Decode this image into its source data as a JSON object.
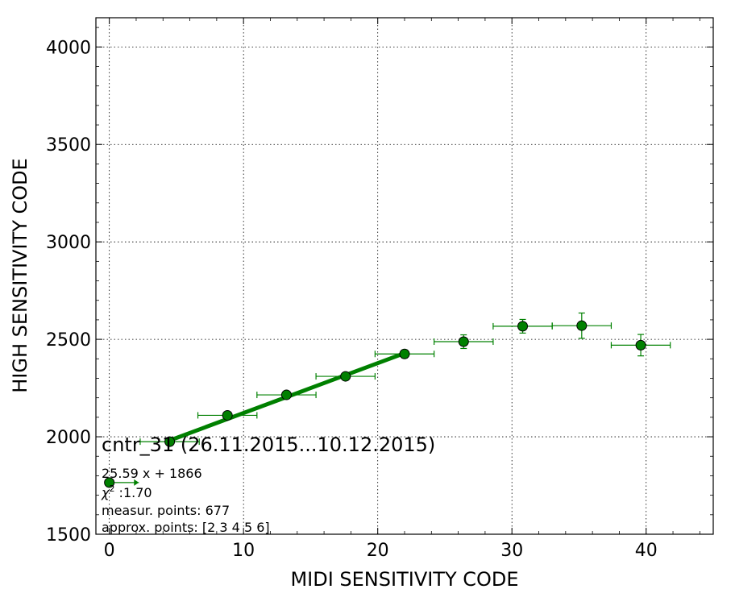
{
  "chart_data": {
    "type": "scatter",
    "xlabel": "MIDI SENSITIVITY CODE",
    "ylabel": "HIGH SENSITIVITY CODE",
    "xlim": [
      -1,
      45
    ],
    "ylim": [
      1500,
      4150
    ],
    "x_ticks": [
      0,
      10,
      20,
      30,
      40
    ],
    "y_ticks": [
      1500,
      2000,
      2500,
      3000,
      3500,
      4000
    ],
    "grid": true,
    "colors": {
      "series": "#008000",
      "marker_edge": "#000000"
    },
    "series": [
      {
        "points": [
          {
            "x": 0.0,
            "y": 1765,
            "xerr": 2.2,
            "yerr": 0,
            "xerr_one_sided": true
          },
          {
            "x": 4.5,
            "y": 1975,
            "xerr": 2.2,
            "yerr": 0
          },
          {
            "x": 8.8,
            "y": 2110,
            "xerr": 2.2,
            "yerr": 0
          },
          {
            "x": 13.2,
            "y": 2215,
            "xerr": 2.2,
            "yerr": 10
          },
          {
            "x": 17.6,
            "y": 2310,
            "xerr": 2.2,
            "yerr": 10
          },
          {
            "x": 22.0,
            "y": 2425,
            "xerr": 2.2,
            "yerr": 20
          },
          {
            "x": 26.4,
            "y": 2488,
            "xerr": 2.2,
            "yerr": 35
          },
          {
            "x": 30.8,
            "y": 2567,
            "xerr": 2.2,
            "yerr": 35
          },
          {
            "x": 35.2,
            "y": 2570,
            "xerr": 2.2,
            "yerr": 65
          },
          {
            "x": 39.6,
            "y": 2470,
            "xerr": 2.2,
            "yerr": 55
          }
        ]
      }
    ],
    "fit_line": {
      "slope": 25.59,
      "intercept": 1866,
      "x_start": 4.5,
      "x_end": 22.0
    },
    "annotations": {
      "title": "cntr_31 (26.11.2015...10.12.2015)",
      "equation": "25.59 x + 1866",
      "chi_symbol": "χ",
      "chi_sup": "2",
      "chi_value": " :1.70",
      "measur_points": "measur. points: 677",
      "approx_points": "approx. points: [2 3 4 5 6]"
    }
  }
}
